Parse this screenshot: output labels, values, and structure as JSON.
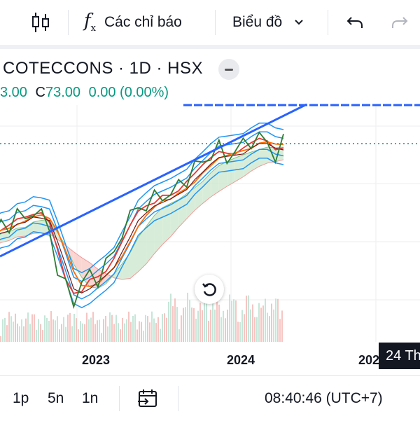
{
  "toolbar": {
    "indicators_label": "Các chỉ báo",
    "chart_type_label": "Biểu đồ"
  },
  "legend": {
    "title": "COTECCONS · 1D · HSX",
    "open_partial": "3.00",
    "close_prefix": "C",
    "close_value": "73.00",
    "change": "0.00 (0.00%)",
    "color": "#089981"
  },
  "colors": {
    "trendline": "#2962ff",
    "price": "#2e7d32",
    "bands": "#2196f3",
    "ma_fast": "#e53935",
    "ma_slow": "#ff6d00",
    "cloud_bear": "#f8c4c0",
    "cloud_bull": "#c8e6c9",
    "last_price_line": "#089981",
    "volume": "#f4b6b3"
  },
  "chart_data": {
    "type": "line",
    "title": "COTECCONS · 1D · HSX",
    "x_tick_labels": [
      "2023",
      "2024",
      "202"
    ],
    "crosshair_date": "24 Th",
    "last_close": 73.0,
    "grid": true,
    "series": [
      {
        "name": "",
        "values": [
          0.42,
          0.47,
          0.48,
          0.54,
          0.5,
          0.57,
          0.52,
          0.46,
          0.21,
          0.12,
          0.05,
          0.14,
          0.19,
          0.17,
          0.25,
          0.32,
          0.44,
          0.51,
          0.6,
          0.57,
          0.63,
          0.66,
          0.63,
          0.71,
          0.74,
          0.8,
          0.84,
          0.88,
          0.91,
          0.86,
          0.9,
          0.93,
          0.96,
          0.98,
          0.93,
          0.88,
          0.95
        ]
      }
    ]
  },
  "reset_icon": "rotate-ccw-icon",
  "bottom": {
    "intervals": [
      "1p",
      "5n",
      "1n"
    ],
    "time": "08:40:46 (UTC+7)"
  }
}
